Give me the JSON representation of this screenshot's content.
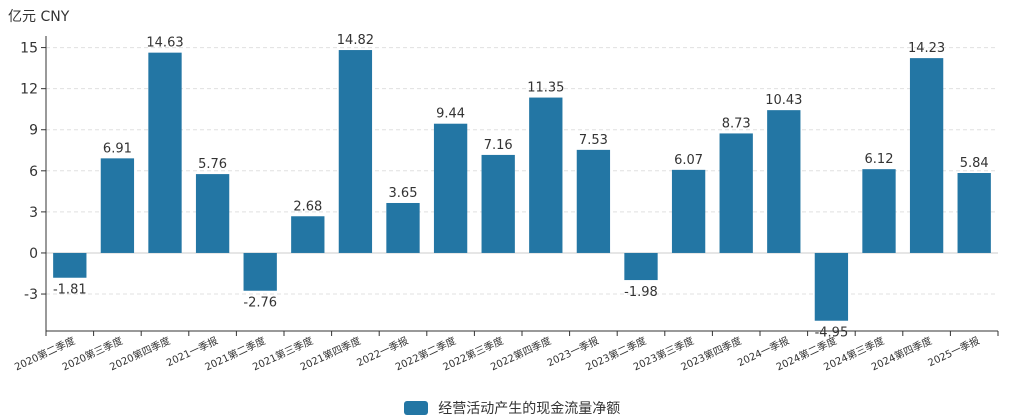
{
  "chart_data": {
    "type": "bar",
    "unit_label": "亿元  CNY",
    "categories": [
      "2020第二季度",
      "2020第三季度",
      "2020第四季度",
      "2021一季报",
      "2021第二季度",
      "2021第三季度",
      "2021第四季度",
      "2022一季报",
      "2022第二季度",
      "2022第三季度",
      "2022第四季度",
      "2023一季报",
      "2023第二季度",
      "2023第三季度",
      "2023第四季度",
      "2024一季报",
      "2024第二季度",
      "2024第三季度",
      "2024第四季度",
      "2025一季报"
    ],
    "series": [
      {
        "name": "经营活动产生的现金流量净额",
        "values": [
          -1.81,
          6.91,
          14.63,
          5.76,
          -2.76,
          2.68,
          14.82,
          3.65,
          9.44,
          7.16,
          11.35,
          7.53,
          -1.98,
          6.07,
          8.73,
          10.43,
          -4.95,
          6.12,
          14.23,
          5.84
        ],
        "labels": [
          "-1.81",
          "6.91",
          "14.63",
          "5.76",
          "-2.76",
          "2.68",
          "14.82",
          "3.65",
          "9.44",
          "7.16",
          "11.35",
          "7.53",
          "-1.98",
          "6.07",
          "8.73",
          "10.43",
          "-4.95",
          "6.12",
          "14.23",
          "5.84"
        ]
      }
    ],
    "y_ticks": [
      "-3",
      "0",
      "3",
      "6",
      "9",
      "12",
      "15"
    ],
    "ylim": [
      -5.7,
      15.7
    ],
    "grid": true,
    "legend_position": "bottom",
    "colors": {
      "bar": "#2376a4",
      "axis": "#333333",
      "grid": "#e0e0e0",
      "text": "#333333"
    }
  }
}
